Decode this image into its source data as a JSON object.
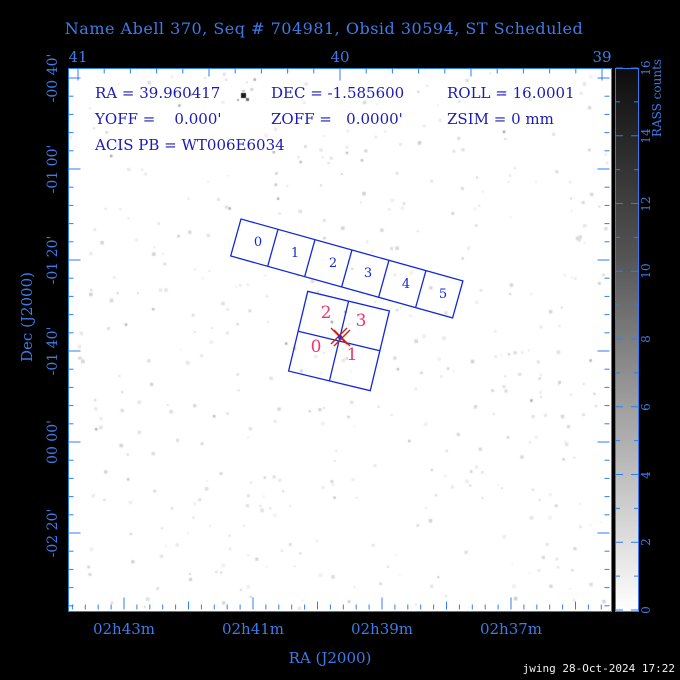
{
  "title": "Name Abell 370, Seq # 704981, Obsid 30594, ST Scheduled",
  "info": {
    "ra": "RA = 39.960417",
    "dec": "DEC = -1.585600",
    "roll": "ROLL = 16.0001",
    "yoff": "YOFF =    0.000'",
    "zoff": "ZOFF =   0.0000'",
    "zsim": "ZSIM = 0 mm",
    "acis_pb": "ACIS PB = WT006E6034"
  },
  "axes": {
    "top": {
      "ticks": [
        "41",
        "40",
        "39"
      ]
    },
    "bottom": {
      "label": "RA (J2000)",
      "ticks": [
        "02h43m",
        "02h41m",
        "02h39m",
        "02h37m"
      ]
    },
    "left": {
      "label": "Dec (J2000)",
      "ticks": [
        "-00 40'",
        "-01 00'",
        "-01 20'",
        "-01 40'",
        "00 00'",
        "-02 20'"
      ]
    }
  },
  "colorbar": {
    "label": "RASS counts",
    "ticks": [
      "16",
      "14",
      "12",
      "10",
      "8",
      "6",
      "4",
      "2",
      "0"
    ]
  },
  "chips": {
    "s": [
      "0",
      "1",
      "2",
      "3",
      "4",
      "5"
    ],
    "i": [
      "2",
      "3",
      "0",
      "1"
    ]
  },
  "footer": "jwing 28-Oct-2024 17:22",
  "colors": {
    "background": "#000000",
    "plot_background": "#ffffff",
    "axis_blue": "#3d7ce8",
    "info_navy": "#1a1ab8",
    "chip_outline_blue": "#1228d8",
    "acis_i_label_pink": "#ee3370",
    "aimpoint_red": "#cc2211",
    "footer_white": "#f2f2f2"
  },
  "chart_data": {
    "type": "heatmap",
    "title": "Name Abell 370, Seq # 704981, Obsid 30594, ST Scheduled",
    "xlabel": "RA (J2000)",
    "ylabel": "Dec (J2000)",
    "x_ticks_top_degrees": [
      41,
      40,
      39
    ],
    "x_ticks_bottom": [
      "02h43m",
      "02h41m",
      "02h39m",
      "02h37m"
    ],
    "y_ticks": [
      "-00 40'",
      "-01 00'",
      "-01 20'",
      "-01 40'",
      "00 00'",
      "-02 20'"
    ],
    "colorbar": {
      "label": "RASS counts",
      "range": [
        0,
        16
      ],
      "ticks": [
        0,
        2,
        4,
        6,
        8,
        10,
        12,
        14,
        16
      ]
    },
    "overlays": [
      {
        "name": "ACIS-S array",
        "chip_labels": [
          "0",
          "1",
          "2",
          "3",
          "4",
          "5"
        ],
        "outline_color": "#1228d8"
      },
      {
        "name": "ACIS-I array",
        "chip_labels": [
          "2",
          "3",
          "0",
          "1"
        ],
        "label_color": "#ee3370"
      },
      {
        "name": "aimpoint",
        "ra_deg": 39.960417,
        "dec_deg": -1.5856,
        "roll_deg": 16.0001
      }
    ]
  }
}
